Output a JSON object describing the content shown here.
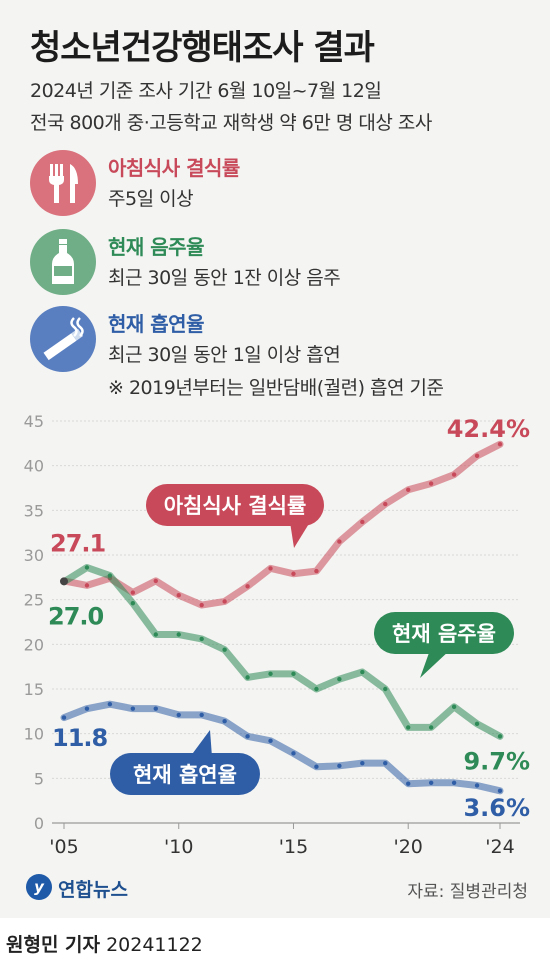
{
  "header": {
    "title": "청소년건강행태조사 결과",
    "subtitle_1": "2024년 기준 조사 기간 6월 10일~7월 12일",
    "subtitle_2": "전국 800개 중·고등학교 재학생 약 6만 명 대상 조사"
  },
  "legend": {
    "items": [
      {
        "title": "아침식사 결식률",
        "desc": "주5일 이상",
        "color": "#c84a5a",
        "icon": "fork-knife-icon"
      },
      {
        "title": "현재 음주율",
        "desc": "최근 30일 동안 1잔 이상 음주",
        "color": "#2e8b57",
        "icon": "bottle-icon"
      },
      {
        "title": "현재 흡연율",
        "desc": "최근 30일 동안 1일 이상 흡연",
        "color": "#2f5ea6",
        "icon": "cigarette-icon"
      }
    ],
    "note": "※ 2019년부터는 일반담배(궐련) 흡연 기준"
  },
  "chart_data": {
    "type": "line",
    "x": [
      2005,
      2006,
      2007,
      2008,
      2009,
      2010,
      2011,
      2012,
      2013,
      2014,
      2015,
      2016,
      2017,
      2018,
      2019,
      2020,
      2021,
      2022,
      2023,
      2024
    ],
    "xticks": [
      {
        "value": 2005,
        "label": "'05"
      },
      {
        "value": 2010,
        "label": "'10"
      },
      {
        "value": 2015,
        "label": "'15"
      },
      {
        "value": 2020,
        "label": "'20"
      },
      {
        "value": 2024,
        "label": "'24"
      }
    ],
    "yticks": [
      0,
      5,
      10,
      15,
      20,
      25,
      30,
      35,
      40,
      45
    ],
    "ylim": [
      0,
      45
    ],
    "grid": true,
    "series": [
      {
        "name": "아침식사 결식률",
        "color": "#c84a5a",
        "values": [
          27.1,
          26.6,
          27.4,
          25.8,
          27.1,
          25.5,
          24.4,
          24.8,
          26.5,
          28.5,
          27.9,
          28.2,
          31.5,
          33.7,
          35.7,
          37.3,
          38.0,
          39.0,
          41.1,
          42.4
        ],
        "start_label": "27.1",
        "end_label": "42.4%"
      },
      {
        "name": "현재 음주율",
        "color": "#2e8b57",
        "values": [
          27.0,
          28.6,
          27.7,
          24.6,
          21.1,
          21.1,
          20.6,
          19.4,
          16.3,
          16.7,
          16.7,
          15.0,
          16.1,
          16.9,
          15.0,
          10.7,
          10.7,
          13.0,
          11.1,
          9.7
        ],
        "start_label": "27.0",
        "end_label": "9.7%"
      },
      {
        "name": "현재 흡연율",
        "color": "#2f5ea6",
        "values": [
          11.8,
          12.8,
          13.3,
          12.8,
          12.8,
          12.1,
          12.1,
          11.4,
          9.7,
          9.2,
          7.8,
          6.3,
          6.4,
          6.7,
          6.7,
          4.4,
          4.5,
          4.5,
          4.2,
          3.6
        ],
        "start_label": "11.8",
        "end_label": "3.6%"
      }
    ]
  },
  "footer": {
    "logo_text": "연합뉴스",
    "source": "자료: 질병관리청",
    "byline_name": "원형민 기자",
    "byline_date": "20241122"
  }
}
